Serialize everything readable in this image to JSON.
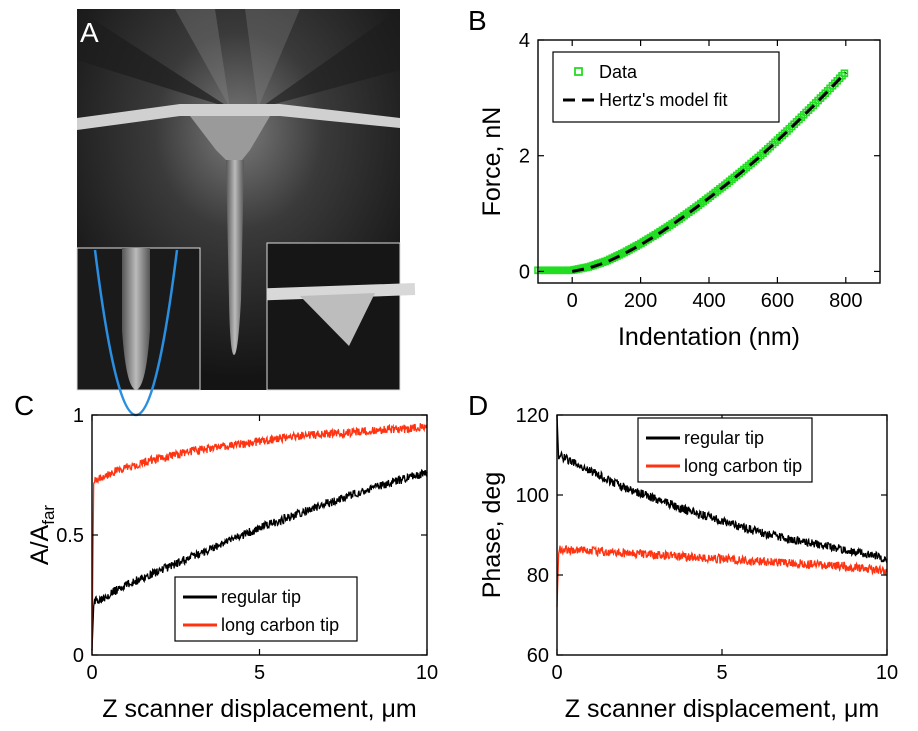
{
  "panels": {
    "A": {
      "letter": "A"
    },
    "B": {
      "letter": "B"
    },
    "C": {
      "letter": "C"
    },
    "D": {
      "letter": "D"
    }
  },
  "chart_data": [
    {
      "panel": "B",
      "type": "line",
      "xlabel": "Indentation (nm)",
      "ylabel": "Force, nN",
      "xlim": [
        -100,
        900
      ],
      "ylim": [
        -0.2,
        4
      ],
      "xticks": [
        0,
        200,
        400,
        600,
        800
      ],
      "yticks": [
        0,
        2,
        4
      ],
      "legend_position": "top-left",
      "series": [
        {
          "name": "Data",
          "style": "markers",
          "color": "#22dd22",
          "x": [
            -100,
            -50,
            0,
            50,
            100,
            150,
            200,
            250,
            300,
            350,
            400,
            450,
            500,
            550,
            600,
            650,
            700,
            750,
            800
          ],
          "y": [
            0.02,
            0.02,
            0.02,
            0.08,
            0.18,
            0.32,
            0.48,
            0.66,
            0.85,
            1.06,
            1.28,
            1.51,
            1.75,
            2.0,
            2.27,
            2.55,
            2.84,
            3.14,
            3.45
          ]
        },
        {
          "name": "Hertz's model fit",
          "style": "dashed",
          "color": "#000000",
          "x": [
            0,
            50,
            100,
            150,
            200,
            250,
            300,
            350,
            400,
            450,
            500,
            550,
            600,
            650,
            700,
            750,
            800
          ],
          "y": [
            0.0,
            0.06,
            0.16,
            0.3,
            0.46,
            0.64,
            0.84,
            1.05,
            1.27,
            1.5,
            1.74,
            1.99,
            2.26,
            2.54,
            2.83,
            3.13,
            3.44
          ]
        }
      ]
    },
    {
      "panel": "C",
      "type": "line",
      "xlabel": "Z scanner displacement, μm",
      "ylabel_main": "A/A",
      "ylabel_sub": "far",
      "xlim": [
        0,
        10
      ],
      "ylim": [
        0,
        1
      ],
      "xticks": [
        0,
        5,
        10
      ],
      "yticks": [
        0,
        0.5,
        1
      ],
      "legend_position": "bottom-right",
      "series": [
        {
          "name": "regular tip",
          "color": "#000000",
          "x": [
            0,
            0.05,
            1,
            2,
            3,
            4,
            5,
            6,
            7,
            8,
            9,
            10
          ],
          "y": [
            0.02,
            0.22,
            0.29,
            0.35,
            0.41,
            0.47,
            0.53,
            0.58,
            0.63,
            0.68,
            0.72,
            0.76
          ]
        },
        {
          "name": "long carbon tip",
          "color": "#ff3311",
          "x": [
            0,
            0.05,
            1,
            2,
            3,
            4,
            5,
            6,
            7,
            8,
            9,
            10
          ],
          "y": [
            0.02,
            0.73,
            0.78,
            0.82,
            0.85,
            0.87,
            0.89,
            0.91,
            0.92,
            0.93,
            0.94,
            0.95
          ]
        }
      ]
    },
    {
      "panel": "D",
      "type": "line",
      "xlabel": "Z scanner displacement, μm",
      "ylabel": "Phase, deg",
      "xlim": [
        0,
        10
      ],
      "ylim": [
        60,
        120
      ],
      "xticks": [
        0,
        5,
        10
      ],
      "yticks": [
        60,
        80,
        100,
        120
      ],
      "legend_position": "top-right",
      "series": [
        {
          "name": "regular tip",
          "color": "#000000",
          "x": [
            0,
            0.05,
            1,
            2,
            3,
            4,
            5,
            6,
            7,
            8,
            9,
            10
          ],
          "y": [
            120,
            110,
            106,
            102,
            99,
            96,
            93.5,
            91,
            89,
            87.5,
            86,
            84
          ]
        },
        {
          "name": "long carbon tip",
          "color": "#ff3311",
          "x": [
            0,
            0.05,
            1,
            2,
            3,
            4,
            5,
            6,
            7,
            8,
            9,
            10
          ],
          "y": [
            72,
            86.5,
            86,
            85.5,
            85,
            84.5,
            84,
            83.5,
            83,
            82.5,
            82,
            81
          ]
        }
      ]
    }
  ]
}
